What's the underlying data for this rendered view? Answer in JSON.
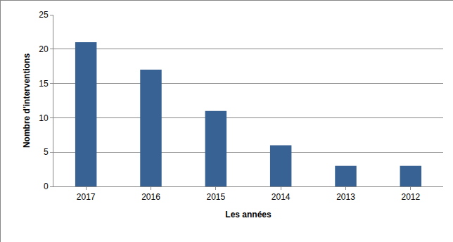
{
  "chart_data": {
    "type": "bar",
    "categories": [
      "2017",
      "2016",
      "2015",
      "2014",
      "2013",
      "2012"
    ],
    "values": [
      21,
      17,
      11,
      6,
      3,
      3
    ],
    "color": "#386194",
    "x_label": "Les années",
    "y_label": "Nombre d'interventions",
    "ylim": [
      0,
      25
    ],
    "yticks": [
      0,
      5,
      10,
      15,
      20,
      25
    ],
    "grid": true
  }
}
